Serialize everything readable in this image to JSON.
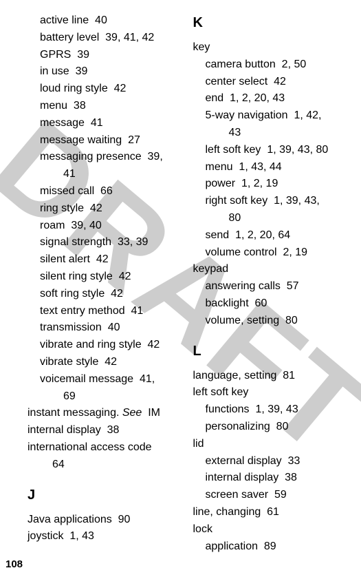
{
  "watermark": "DRAFT",
  "page_number": "108",
  "left": {
    "continued_sub": [
      {
        "label": "active line",
        "pages": "40"
      },
      {
        "label": "battery level",
        "pages": "39, 41, 42"
      },
      {
        "label": "GPRS",
        "pages": "39"
      },
      {
        "label": "in use",
        "pages": "39"
      },
      {
        "label": "loud ring style",
        "pages": "42"
      },
      {
        "label": "menu",
        "pages": "38"
      },
      {
        "label": "message",
        "pages": "41"
      },
      {
        "label": "message waiting",
        "pages": "27"
      },
      {
        "label": "messaging presence",
        "pages": "39, 41",
        "wrap": true
      },
      {
        "label": "missed call",
        "pages": "66"
      },
      {
        "label": "ring style",
        "pages": "42"
      },
      {
        "label": "roam",
        "pages": "39, 40"
      },
      {
        "label": "signal strength",
        "pages": "33, 39"
      },
      {
        "label": "silent alert",
        "pages": "42"
      },
      {
        "label": "silent ring style",
        "pages": "42"
      },
      {
        "label": "soft ring style",
        "pages": "42"
      },
      {
        "label": "text entry method",
        "pages": "41"
      },
      {
        "label": "transmission",
        "pages": "40"
      },
      {
        "label": "vibrate and ring style",
        "pages": "42"
      },
      {
        "label": "vibrate style",
        "pages": "42"
      },
      {
        "label": "voicemail message",
        "pages": "41, 69",
        "wrap": true
      }
    ],
    "entries": [
      {
        "label": "instant messaging.",
        "italic_tail": "See",
        "pages": "IM"
      },
      {
        "label": "internal display",
        "pages": "38"
      },
      {
        "label": "international access code",
        "pages": "64",
        "wrap": true
      }
    ],
    "J": {
      "letter": "J",
      "entries": [
        {
          "label": "Java applications",
          "pages": "90"
        },
        {
          "label": "joystick",
          "pages": "1, 43"
        }
      ]
    }
  },
  "right": {
    "K": {
      "letter": "K",
      "entries": [
        {
          "label": "key",
          "sub": [
            {
              "label": "camera button",
              "pages": "2, 50"
            },
            {
              "label": "center select",
              "pages": "42"
            },
            {
              "label": "end",
              "pages": "1, 2, 20, 43"
            },
            {
              "label": "5-way navigation",
              "pages": "1, 42, 43",
              "wrap": true
            },
            {
              "label": "left soft key",
              "pages": "1, 39, 43, 80"
            },
            {
              "label": "menu",
              "pages": "1, 43, 44"
            },
            {
              "label": "power",
              "pages": "1, 2, 19"
            },
            {
              "label": "right soft key",
              "pages": "1, 39, 43, 80",
              "wrap": true
            },
            {
              "label": "send",
              "pages": "1, 2, 20, 64"
            },
            {
              "label": "volume control",
              "pages": "2, 19"
            }
          ]
        },
        {
          "label": "keypad",
          "sub": [
            {
              "label": "answering calls",
              "pages": "57"
            },
            {
              "label": "backlight",
              "pages": "60"
            },
            {
              "label": "volume, setting",
              "pages": "80"
            }
          ]
        }
      ]
    },
    "L": {
      "letter": "L",
      "entries": [
        {
          "label": "language, setting",
          "pages": "81"
        },
        {
          "label": "left soft key",
          "sub": [
            {
              "label": "functions",
              "pages": "1, 39, 43"
            },
            {
              "label": "personalizing",
              "pages": "80"
            }
          ]
        },
        {
          "label": "lid",
          "sub": [
            {
              "label": "external display",
              "pages": "33"
            },
            {
              "label": "internal display",
              "pages": "38"
            },
            {
              "label": "screen saver",
              "pages": "59"
            }
          ]
        },
        {
          "label": "line, changing",
          "pages": "61"
        },
        {
          "label": "lock",
          "sub": [
            {
              "label": "application",
              "pages": "89"
            }
          ]
        }
      ]
    }
  }
}
